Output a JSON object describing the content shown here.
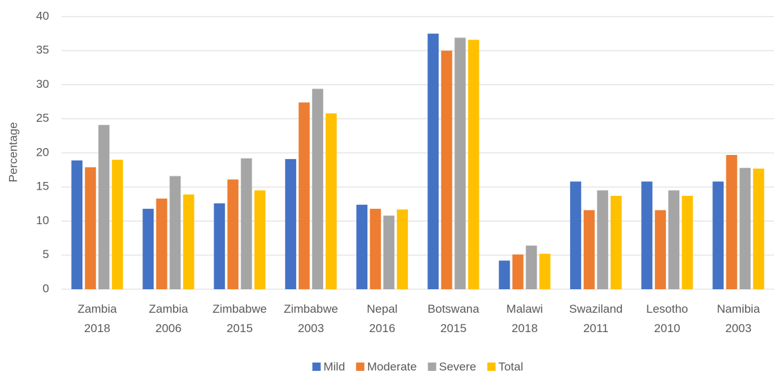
{
  "chart_data": {
    "type": "bar",
    "y_label": "Percentage",
    "categories": [
      "Zambia 2018",
      "Zambia 2006",
      "Zimbabwe 2015",
      "Zimbabwe 2003",
      "Nepal 2016",
      "Botswana 2015",
      "Malawi 2018",
      "Swaziland 2011",
      "Lesotho 2010",
      "Namibia 2003"
    ],
    "series": [
      {
        "name": "Mild",
        "color": "#4472c4",
        "values": [
          18.9,
          11.8,
          12.6,
          19.1,
          12.4,
          37.5,
          4.2,
          15.8,
          15.8,
          15.8
        ]
      },
      {
        "name": "Moderate",
        "color": "#ed7d31",
        "values": [
          17.9,
          13.3,
          16.1,
          27.4,
          11.8,
          35.0,
          5.1,
          11.6,
          11.6,
          19.7
        ]
      },
      {
        "name": "Severe",
        "color": "#a5a5a5",
        "values": [
          24.1,
          16.6,
          19.2,
          29.4,
          10.8,
          36.9,
          6.4,
          14.5,
          14.5,
          17.8
        ]
      },
      {
        "name": "Total",
        "color": "#ffc000",
        "values": [
          19.0,
          13.9,
          14.5,
          25.8,
          11.7,
          36.6,
          5.2,
          13.7,
          13.7,
          17.7
        ]
      }
    ],
    "ylim": [
      0,
      40
    ],
    "yticks": [
      0,
      5,
      10,
      15,
      20,
      25,
      30,
      35,
      40
    ],
    "grid": true,
    "legend": "bottom"
  }
}
